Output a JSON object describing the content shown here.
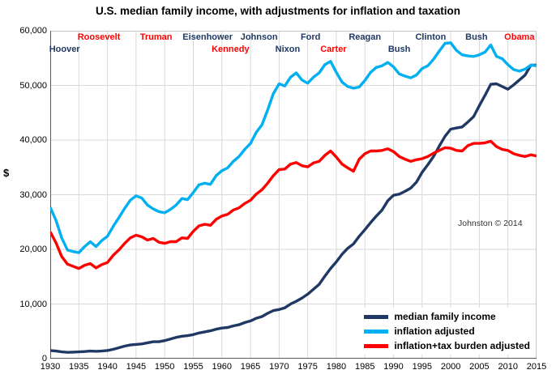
{
  "chart_data": {
    "type": "line",
    "title": "U.S. median family income, with adjustments for inflation and taxation",
    "ylabel": "$",
    "credit": "Johnston © 2014",
    "xlim": [
      1930,
      2015
    ],
    "ylim": [
      0,
      60000
    ],
    "grid": true,
    "grid_color": "#D9D9D9",
    "axis_color": "#595959",
    "border_color": "#C6C6C6",
    "legend_position": "bottom-right",
    "x_ticks": [
      1930,
      1935,
      1940,
      1945,
      1950,
      1955,
      1960,
      1965,
      1970,
      1975,
      1980,
      1985,
      1990,
      1995,
      2000,
      2005,
      2010,
      2015
    ],
    "y_ticks": [
      {
        "value": 0,
        "label": "0"
      },
      {
        "value": 10000,
        "label": "10,000"
      },
      {
        "value": 20000,
        "label": "20,000"
      },
      {
        "value": 30000,
        "label": "30,000"
      },
      {
        "value": 40000,
        "label": "40,000"
      },
      {
        "value": 50000,
        "label": "50,000"
      },
      {
        "value": 60000,
        "label": "60,000"
      }
    ],
    "years": [
      1930,
      1931,
      1932,
      1933,
      1934,
      1935,
      1936,
      1937,
      1938,
      1939,
      1940,
      1941,
      1942,
      1943,
      1944,
      1945,
      1946,
      1947,
      1948,
      1949,
      1950,
      1951,
      1952,
      1953,
      1954,
      1955,
      1956,
      1957,
      1958,
      1959,
      1960,
      1961,
      1962,
      1963,
      1964,
      1965,
      1966,
      1967,
      1968,
      1969,
      1970,
      1971,
      1972,
      1973,
      1974,
      1975,
      1976,
      1977,
      1978,
      1979,
      1980,
      1981,
      1982,
      1983,
      1984,
      1985,
      1986,
      1987,
      1988,
      1989,
      1990,
      1991,
      1992,
      1993,
      1994,
      1995,
      1996,
      1997,
      1998,
      1999,
      2000,
      2001,
      2002,
      2003,
      2004,
      2005,
      2006,
      2007,
      2008,
      2009,
      2010,
      2011,
      2012,
      2013,
      2014,
      2015
    ],
    "series": [
      {
        "id": "median-family-income",
        "name": "median family income",
        "color": "#1F3864",
        "values": [
          1500,
          1400,
          1250,
          1150,
          1200,
          1250,
          1300,
          1400,
          1350,
          1400,
          1500,
          1700,
          2000,
          2300,
          2500,
          2600,
          2700,
          2900,
          3100,
          3100,
          3300,
          3600,
          3900,
          4100,
          4200,
          4400,
          4700,
          4900,
          5100,
          5400,
          5600,
          5700,
          6000,
          6200,
          6600,
          6900,
          7400,
          7700,
          8300,
          8800,
          9000,
          9300,
          10000,
          10500,
          11100,
          11800,
          12700,
          13600,
          15100,
          16500,
          17700,
          19100,
          20200,
          21000,
          22400,
          23600,
          24900,
          26100,
          27200,
          28900,
          29900,
          30100,
          30600,
          31200,
          32300,
          34100,
          35500,
          37000,
          38900,
          40700,
          42000,
          42200,
          42400,
          43300,
          44300,
          46300,
          48200,
          50200,
          50300,
          49800,
          49300,
          50100,
          51000,
          51900,
          53700,
          53700
        ]
      },
      {
        "id": "inflation-adjusted",
        "name": "inflation adjusted",
        "color": "#00B0F0",
        "values": [
          27700,
          25300,
          22100,
          19900,
          19600,
          19400,
          20500,
          21400,
          20500,
          21600,
          22400,
          24200,
          25800,
          27500,
          29000,
          29800,
          29400,
          28100,
          27400,
          26900,
          26700,
          27300,
          28100,
          29300,
          29100,
          30400,
          31800,
          32100,
          31900,
          33500,
          34400,
          34900,
          36100,
          37000,
          38300,
          39400,
          41400,
          42800,
          45500,
          48500,
          50300,
          49900,
          51500,
          52300,
          51000,
          50400,
          51500,
          52300,
          53800,
          54400,
          52400,
          50600,
          49800,
          49500,
          49700,
          50900,
          52400,
          53300,
          53600,
          54200,
          53400,
          52100,
          51700,
          51400,
          51900,
          53100,
          53600,
          54800,
          56300,
          57700,
          57800,
          56400,
          55600,
          55400,
          55300,
          55600,
          56100,
          57400,
          55300,
          54900,
          53800,
          52900,
          52600,
          53000,
          53700,
          53600
        ]
      },
      {
        "id": "inflation-tax-adjusted",
        "name": "inflation+tax burden adjusted",
        "color": "#FF0000",
        "values": [
          23200,
          21200,
          18700,
          17300,
          16900,
          16500,
          17100,
          17400,
          16600,
          17200,
          17600,
          18900,
          19900,
          21100,
          22100,
          22600,
          22300,
          21700,
          22000,
          21300,
          21100,
          21400,
          21400,
          22100,
          22000,
          23300,
          24300,
          24600,
          24400,
          25500,
          26100,
          26400,
          27200,
          27600,
          28400,
          29000,
          30100,
          30900,
          32100,
          33500,
          34600,
          34700,
          35600,
          35900,
          35300,
          35100,
          35800,
          36100,
          37200,
          38000,
          36900,
          35600,
          34900,
          34300,
          36500,
          37500,
          38000,
          38000,
          38100,
          38400,
          37900,
          37000,
          36500,
          36100,
          36400,
          36600,
          37000,
          37600,
          38100,
          38600,
          38500,
          38100,
          38000,
          39000,
          39400,
          39400,
          39500,
          39800,
          38800,
          38300,
          38100,
          37500,
          37200,
          37000,
          37300,
          37100
        ]
      }
    ],
    "presidents": [
      {
        "name": "Hoover",
        "year": 1932.5,
        "row": 2,
        "color": "#1F3864"
      },
      {
        "name": "Roosevelt",
        "year": 1938.5,
        "row": 1,
        "color": "#FF0000"
      },
      {
        "name": "Truman",
        "year": 1948.5,
        "row": 1,
        "color": "#FF0000"
      },
      {
        "name": "Eisenhower",
        "year": 1957.5,
        "row": 1,
        "color": "#1F3864"
      },
      {
        "name": "Kennedy",
        "year": 1961.5,
        "row": 2,
        "color": "#FF0000"
      },
      {
        "name": "Johnson",
        "year": 1966.5,
        "row": 1,
        "color": "#1F3864"
      },
      {
        "name": "Nixon",
        "year": 1971.5,
        "row": 2,
        "color": "#1F3864"
      },
      {
        "name": "Ford",
        "year": 1975.5,
        "row": 1,
        "color": "#1F3864"
      },
      {
        "name": "Carter",
        "year": 1979.5,
        "row": 2,
        "color": "#FF0000"
      },
      {
        "name": "Reagan",
        "year": 1985.0,
        "row": 1,
        "color": "#1F3864"
      },
      {
        "name": "Bush",
        "year": 1991.0,
        "row": 2,
        "color": "#1F3864"
      },
      {
        "name": "Clinton",
        "year": 1996.5,
        "row": 1,
        "color": "#1F3864"
      },
      {
        "name": "Bush",
        "year": 2004.5,
        "row": 1,
        "color": "#1F3864"
      },
      {
        "name": "Obama",
        "year": 2012.0,
        "row": 1,
        "color": "#FF0000"
      }
    ]
  }
}
